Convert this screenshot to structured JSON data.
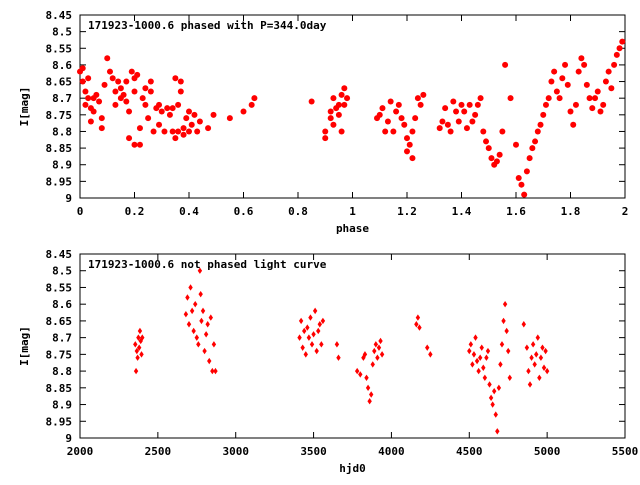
{
  "colors": {
    "points": "#ff0000",
    "axes": "#000000",
    "background": "#ffffff"
  },
  "chart_data": [
    {
      "type": "scatter",
      "title": "171923-1000.6 phased with P=344.0day",
      "xlabel": "phase",
      "ylabel": "I[mag]",
      "xlim": [
        0,
        2
      ],
      "ylim": [
        8.45,
        9.0
      ],
      "y_inverted": true,
      "grid": false,
      "xticks": [
        0,
        0.2,
        0.4,
        0.6,
        0.8,
        1,
        1.2,
        1.4,
        1.6,
        1.8,
        2
      ],
      "xtick_labels": [
        "0",
        "0.2",
        "0.4",
        "0.6",
        "0.8",
        "1",
        "1.2",
        "1.4",
        "1.6",
        "1.8",
        "2"
      ],
      "yticks": [
        8.45,
        8.5,
        8.55,
        8.6,
        8.65,
        8.7,
        8.75,
        8.8,
        8.85,
        8.9,
        8.95,
        9
      ],
      "ytick_labels": [
        "8.45",
        "8.5",
        "8.55",
        "8.6",
        "8.65",
        "8.7",
        "8.75",
        "8.8",
        "8.85",
        "8.9",
        "8.95",
        "9"
      ],
      "marker": "filled-circle",
      "points": [
        [
          0.0,
          8.62
        ],
        [
          0.01,
          8.61
        ],
        [
          0.01,
          8.65
        ],
        [
          0.02,
          8.68
        ],
        [
          0.02,
          8.72
        ],
        [
          0.03,
          8.64
        ],
        [
          0.03,
          8.7
        ],
        [
          0.04,
          8.73
        ],
        [
          0.04,
          8.77
        ],
        [
          0.05,
          8.7
        ],
        [
          0.05,
          8.74
        ],
        [
          0.06,
          8.69
        ],
        [
          0.07,
          8.71
        ],
        [
          0.08,
          8.76
        ],
        [
          0.08,
          8.79
        ],
        [
          0.09,
          8.66
        ],
        [
          0.1,
          8.58
        ],
        [
          0.11,
          8.62
        ],
        [
          0.12,
          8.64
        ],
        [
          0.13,
          8.68
        ],
        [
          0.13,
          8.72
        ],
        [
          0.14,
          8.65
        ],
        [
          0.15,
          8.7
        ],
        [
          0.15,
          8.67
        ],
        [
          0.16,
          8.69
        ],
        [
          0.17,
          8.71
        ],
        [
          0.17,
          8.65
        ],
        [
          0.18,
          8.74
        ],
        [
          0.18,
          8.82
        ],
        [
          0.19,
          8.62
        ],
        [
          0.2,
          8.64
        ],
        [
          0.2,
          8.68
        ],
        [
          0.2,
          8.84
        ],
        [
          0.21,
          8.63
        ],
        [
          0.22,
          8.79
        ],
        [
          0.22,
          8.84
        ],
        [
          0.23,
          8.7
        ],
        [
          0.24,
          8.67
        ],
        [
          0.24,
          8.72
        ],
        [
          0.25,
          8.76
        ],
        [
          0.26,
          8.65
        ],
        [
          0.26,
          8.68
        ],
        [
          0.27,
          8.8
        ],
        [
          0.28,
          8.73
        ],
        [
          0.29,
          8.72
        ],
        [
          0.29,
          8.78
        ],
        [
          0.3,
          8.74
        ],
        [
          0.31,
          8.8
        ],
        [
          0.32,
          8.73
        ],
        [
          0.33,
          8.75
        ],
        [
          0.34,
          8.8
        ],
        [
          0.34,
          8.73
        ],
        [
          0.35,
          8.64
        ],
        [
          0.35,
          8.82
        ],
        [
          0.36,
          8.72
        ],
        [
          0.36,
          8.8
        ],
        [
          0.37,
          8.68
        ],
        [
          0.37,
          8.65
        ],
        [
          0.38,
          8.81
        ],
        [
          0.38,
          8.79
        ],
        [
          0.39,
          8.76
        ],
        [
          0.4,
          8.74
        ],
        [
          0.4,
          8.8
        ],
        [
          0.41,
          8.78
        ],
        [
          0.42,
          8.75
        ],
        [
          0.43,
          8.8
        ],
        [
          0.44,
          8.77
        ],
        [
          0.47,
          8.79
        ],
        [
          0.49,
          8.75
        ],
        [
          0.55,
          8.76
        ],
        [
          0.6,
          8.74
        ],
        [
          0.63,
          8.72
        ],
        [
          0.64,
          8.7
        ],
        [
          0.85,
          8.71
        ],
        [
          0.9,
          8.8
        ],
        [
          0.9,
          8.82
        ],
        [
          0.92,
          8.74
        ],
        [
          0.92,
          8.76
        ],
        [
          0.93,
          8.7
        ],
        [
          0.93,
          8.78
        ],
        [
          0.94,
          8.73
        ],
        [
          0.95,
          8.72
        ],
        [
          0.95,
          8.75
        ],
        [
          0.96,
          8.69
        ],
        [
          0.96,
          8.8
        ],
        [
          0.97,
          8.67
        ],
        [
          0.97,
          8.72
        ],
        [
          0.98,
          8.7
        ],
        [
          1.09,
          8.76
        ],
        [
          1.1,
          8.75
        ],
        [
          1.11,
          8.73
        ],
        [
          1.12,
          8.8
        ],
        [
          1.13,
          8.77
        ],
        [
          1.14,
          8.71
        ],
        [
          1.15,
          8.8
        ],
        [
          1.16,
          8.74
        ],
        [
          1.17,
          8.72
        ],
        [
          1.18,
          8.76
        ],
        [
          1.19,
          8.78
        ],
        [
          1.2,
          8.82
        ],
        [
          1.2,
          8.86
        ],
        [
          1.21,
          8.84
        ],
        [
          1.22,
          8.8
        ],
        [
          1.22,
          8.88
        ],
        [
          1.23,
          8.76
        ],
        [
          1.24,
          8.7
        ],
        [
          1.25,
          8.72
        ],
        [
          1.26,
          8.69
        ],
        [
          1.32,
          8.79
        ],
        [
          1.33,
          8.77
        ],
        [
          1.34,
          8.73
        ],
        [
          1.35,
          8.78
        ],
        [
          1.36,
          8.8
        ],
        [
          1.37,
          8.71
        ],
        [
          1.38,
          8.74
        ],
        [
          1.39,
          8.77
        ],
        [
          1.4,
          8.72
        ],
        [
          1.41,
          8.74
        ],
        [
          1.42,
          8.79
        ],
        [
          1.43,
          8.72
        ],
        [
          1.44,
          8.77
        ],
        [
          1.45,
          8.75
        ],
        [
          1.46,
          8.72
        ],
        [
          1.47,
          8.7
        ],
        [
          1.48,
          8.8
        ],
        [
          1.49,
          8.83
        ],
        [
          1.5,
          8.85
        ],
        [
          1.51,
          8.88
        ],
        [
          1.52,
          8.9
        ],
        [
          1.53,
          8.89
        ],
        [
          1.54,
          8.87
        ],
        [
          1.55,
          8.8
        ],
        [
          1.56,
          8.6
        ],
        [
          1.58,
          8.7
        ],
        [
          1.6,
          8.84
        ],
        [
          1.61,
          8.94
        ],
        [
          1.62,
          8.96
        ],
        [
          1.63,
          8.99
        ],
        [
          1.64,
          8.92
        ],
        [
          1.65,
          8.88
        ],
        [
          1.66,
          8.85
        ],
        [
          1.67,
          8.83
        ],
        [
          1.68,
          8.8
        ],
        [
          1.69,
          8.78
        ],
        [
          1.7,
          8.75
        ],
        [
          1.71,
          8.72
        ],
        [
          1.72,
          8.7
        ],
        [
          1.73,
          8.65
        ],
        [
          1.74,
          8.62
        ],
        [
          1.75,
          8.68
        ],
        [
          1.76,
          8.7
        ],
        [
          1.77,
          8.64
        ],
        [
          1.78,
          8.6
        ],
        [
          1.79,
          8.66
        ],
        [
          1.8,
          8.74
        ],
        [
          1.81,
          8.78
        ],
        [
          1.82,
          8.72
        ],
        [
          1.83,
          8.62
        ],
        [
          1.84,
          8.58
        ],
        [
          1.85,
          8.6
        ],
        [
          1.86,
          8.66
        ],
        [
          1.87,
          8.7
        ],
        [
          1.88,
          8.73
        ],
        [
          1.89,
          8.7
        ],
        [
          1.9,
          8.68
        ],
        [
          1.91,
          8.74
        ],
        [
          1.92,
          8.72
        ],
        [
          1.93,
          8.65
        ],
        [
          1.94,
          8.62
        ],
        [
          1.95,
          8.67
        ],
        [
          1.96,
          8.6
        ],
        [
          1.97,
          8.57
        ],
        [
          1.98,
          8.55
        ],
        [
          1.99,
          8.53
        ]
      ]
    },
    {
      "type": "scatter",
      "title": "171923-1000.6 not phased light curve",
      "xlabel": "hjd0",
      "ylabel": "I[mag]",
      "xlim": [
        2000,
        5500
      ],
      "ylim": [
        8.45,
        9.0
      ],
      "y_inverted": true,
      "grid": false,
      "xticks": [
        2000,
        2500,
        3000,
        3500,
        4000,
        4500,
        5000,
        5500
      ],
      "xtick_labels": [
        "2000",
        "2500",
        "3000",
        "3500",
        "4000",
        "4500",
        "5000",
        "5500"
      ],
      "yticks": [
        8.45,
        8.5,
        8.55,
        8.6,
        8.65,
        8.7,
        8.75,
        8.8,
        8.85,
        8.9,
        8.95,
        9
      ],
      "ytick_labels": [
        "8.45",
        "8.5",
        "8.55",
        "8.6",
        "8.65",
        "8.7",
        "8.75",
        "8.8",
        "8.85",
        "8.9",
        "8.95",
        "9"
      ],
      "marker": "filled-diamond",
      "points": [
        [
          2355,
          8.72
        ],
        [
          2360,
          8.8
        ],
        [
          2365,
          8.74
        ],
        [
          2370,
          8.76
        ],
        [
          2375,
          8.7
        ],
        [
          2380,
          8.73
        ],
        [
          2385,
          8.68
        ],
        [
          2390,
          8.71
        ],
        [
          2395,
          8.75
        ],
        [
          2400,
          8.7
        ],
        [
          2680,
          8.63
        ],
        [
          2690,
          8.58
        ],
        [
          2700,
          8.66
        ],
        [
          2710,
          8.55
        ],
        [
          2720,
          8.62
        ],
        [
          2730,
          8.68
        ],
        [
          2740,
          8.6
        ],
        [
          2750,
          8.7
        ],
        [
          2760,
          8.72
        ],
        [
          2770,
          8.5
        ],
        [
          2775,
          8.57
        ],
        [
          2780,
          8.65
        ],
        [
          2790,
          8.62
        ],
        [
          2800,
          8.74
        ],
        [
          2810,
          8.69
        ],
        [
          2820,
          8.66
        ],
        [
          2830,
          8.77
        ],
        [
          2840,
          8.64
        ],
        [
          2850,
          8.8
        ],
        [
          2860,
          8.72
        ],
        [
          2870,
          8.8
        ],
        [
          3410,
          8.7
        ],
        [
          3420,
          8.65
        ],
        [
          3430,
          8.73
        ],
        [
          3440,
          8.68
        ],
        [
          3450,
          8.75
        ],
        [
          3460,
          8.67
        ],
        [
          3470,
          8.7
        ],
        [
          3480,
          8.64
        ],
        [
          3490,
          8.72
        ],
        [
          3500,
          8.69
        ],
        [
          3510,
          8.62
        ],
        [
          3520,
          8.74
        ],
        [
          3530,
          8.68
        ],
        [
          3540,
          8.66
        ],
        [
          3550,
          8.72
        ],
        [
          3560,
          8.65
        ],
        [
          3650,
          8.72
        ],
        [
          3660,
          8.76
        ],
        [
          3780,
          8.8
        ],
        [
          3800,
          8.81
        ],
        [
          3820,
          8.76
        ],
        [
          3830,
          8.75
        ],
        [
          3840,
          8.82
        ],
        [
          3850,
          8.85
        ],
        [
          3860,
          8.89
        ],
        [
          3870,
          8.87
        ],
        [
          3880,
          8.78
        ],
        [
          3890,
          8.74
        ],
        [
          3900,
          8.72
        ],
        [
          3910,
          8.76
        ],
        [
          3920,
          8.73
        ],
        [
          3930,
          8.71
        ],
        [
          3940,
          8.75
        ],
        [
          4160,
          8.66
        ],
        [
          4170,
          8.64
        ],
        [
          4180,
          8.67
        ],
        [
          4230,
          8.73
        ],
        [
          4250,
          8.75
        ],
        [
          4500,
          8.74
        ],
        [
          4510,
          8.72
        ],
        [
          4520,
          8.78
        ],
        [
          4530,
          8.75
        ],
        [
          4540,
          8.7
        ],
        [
          4550,
          8.77
        ],
        [
          4560,
          8.8
        ],
        [
          4570,
          8.76
        ],
        [
          4580,
          8.73
        ],
        [
          4590,
          8.79
        ],
        [
          4600,
          8.82
        ],
        [
          4610,
          8.76
        ],
        [
          4620,
          8.74
        ],
        [
          4630,
          8.84
        ],
        [
          4640,
          8.88
        ],
        [
          4650,
          8.9
        ],
        [
          4660,
          8.86
        ],
        [
          4670,
          8.93
        ],
        [
          4680,
          8.98
        ],
        [
          4690,
          8.85
        ],
        [
          4700,
          8.78
        ],
        [
          4710,
          8.72
        ],
        [
          4720,
          8.65
        ],
        [
          4730,
          8.6
        ],
        [
          4740,
          8.68
        ],
        [
          4750,
          8.74
        ],
        [
          4760,
          8.82
        ],
        [
          4850,
          8.66
        ],
        [
          4870,
          8.73
        ],
        [
          4880,
          8.8
        ],
        [
          4890,
          8.84
        ],
        [
          4900,
          8.76
        ],
        [
          4910,
          8.72
        ],
        [
          4920,
          8.78
        ],
        [
          4930,
          8.75
        ],
        [
          4940,
          8.7
        ],
        [
          4950,
          8.82
        ],
        [
          4960,
          8.76
        ],
        [
          4970,
          8.73
        ],
        [
          4980,
          8.79
        ],
        [
          4990,
          8.74
        ],
        [
          5000,
          8.8
        ]
      ]
    }
  ]
}
